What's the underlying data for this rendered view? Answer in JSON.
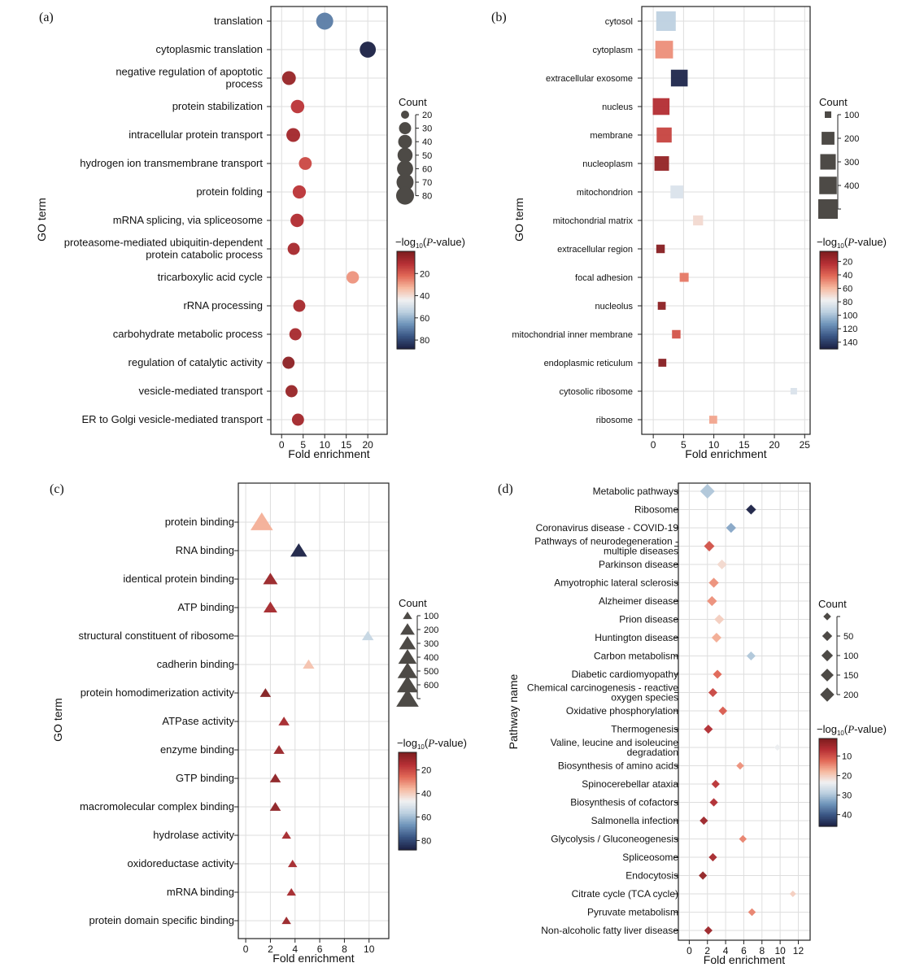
{
  "colors": {
    "scale": [
      "#7f1d1f",
      "#b73035",
      "#e26a58",
      "#f6b9a0",
      "#f1f1f2",
      "#bcd0e0",
      "#6f95bb",
      "#3b5785",
      "#1d2347"
    ],
    "legend_marker": "#4d4a46",
    "grid": "#dedede"
  },
  "chart_data": [
    {
      "panel_label": "(a)",
      "type": "scatter",
      "shape": "circle",
      "ylabel": "GO term",
      "xlabel": "Fold enrichment",
      "x_ticks": [
        0,
        5,
        10,
        15,
        20
      ],
      "xlim": [
        -2.5,
        24.5
      ],
      "grid": true,
      "color_scale": {
        "title_prefix": "−log",
        "title_sub": "10",
        "title_italic": "P",
        "title_suffix": "-value)",
        "ticks": [
          20,
          40,
          60,
          80
        ],
        "range": [
          0,
          88
        ]
      },
      "size_legend": {
        "title": "Count",
        "labels": [
          "20",
          "30",
          "40",
          "50",
          "60",
          "70",
          "80"
        ],
        "values": [
          20,
          30,
          40,
          50,
          60,
          70,
          80
        ]
      },
      "points": [
        {
          "term": [
            "translation"
          ],
          "fold": 10,
          "count": 70,
          "logp": 70
        },
        {
          "term": [
            "cytoplasmic translation"
          ],
          "fold": 20,
          "count": 60,
          "logp": 88
        },
        {
          "term": [
            "negative regulation of apoptotic",
            "process"
          ],
          "fold": 1.7,
          "count": 40,
          "logp": 5
        },
        {
          "term": [
            "protein stabilization"
          ],
          "fold": 3.7,
          "count": 38,
          "logp": 12
        },
        {
          "term": [
            "intracellular protein transport"
          ],
          "fold": 2.7,
          "count": 40,
          "logp": 7
        },
        {
          "term": [
            "hydrogen ion transmembrane transport"
          ],
          "fold": 5.5,
          "count": 34,
          "logp": 16
        },
        {
          "term": [
            "protein folding"
          ],
          "fold": 4.1,
          "count": 36,
          "logp": 12
        },
        {
          "term": [
            "mRNA splicing, via spliceosome"
          ],
          "fold": 3.6,
          "count": 37,
          "logp": 10
        },
        {
          "term": [
            "proteasome-mediated ubiquitin-dependent",
            "protein catabolic process"
          ],
          "fold": 2.8,
          "count": 30,
          "logp": 8
        },
        {
          "term": [
            "tricarboxylic acid cycle"
          ],
          "fold": 16.5,
          "count": 32,
          "logp": 28
        },
        {
          "term": [
            "rRNA processing"
          ],
          "fold": 4.1,
          "count": 30,
          "logp": 8
        },
        {
          "term": [
            "carbohydrate metabolic process"
          ],
          "fold": 3.2,
          "count": 30,
          "logp": 8
        },
        {
          "term": [
            "regulation of catalytic activity"
          ],
          "fold": 1.6,
          "count": 30,
          "logp": 3
        },
        {
          "term": [
            "vesicle-mediated transport"
          ],
          "fold": 2.3,
          "count": 30,
          "logp": 5
        },
        {
          "term": [
            "ER to Golgi vesicle-mediated transport"
          ],
          "fold": 3.8,
          "count": 30,
          "logp": 7
        }
      ]
    },
    {
      "panel_label": "(b)",
      "type": "scatter",
      "shape": "square",
      "ylabel": "GO term",
      "xlabel": "Fold enrichment",
      "x_ticks": [
        0,
        5,
        10,
        15,
        20,
        25
      ],
      "xlim": [
        -1.9,
        25.9
      ],
      "grid": true,
      "color_scale": {
        "title_prefix": "−log",
        "title_sub": "10",
        "title_italic": "P",
        "title_suffix": "-value)",
        "ticks": [
          20,
          40,
          60,
          80,
          100,
          120,
          140
        ],
        "range": [
          5,
          150
        ]
      },
      "size_legend": {
        "title": "Count",
        "labels": [
          "100",
          "200",
          "300",
          "400",
          ""
        ],
        "values": [
          60,
          160,
          260,
          360,
          480
        ]
      },
      "points": [
        {
          "term": [
            "cytosol"
          ],
          "fold": 2.1,
          "count": 480,
          "logp": 95
        },
        {
          "term": [
            "cytoplasm"
          ],
          "fold": 1.8,
          "count": 370,
          "logp": 50
        },
        {
          "term": [
            "extracellular exosome"
          ],
          "fold": 4.3,
          "count": 320,
          "logp": 148
        },
        {
          "term": [
            "nucleus"
          ],
          "fold": 1.3,
          "count": 320,
          "logp": 22
        },
        {
          "term": [
            "membrane"
          ],
          "fold": 1.8,
          "count": 240,
          "logp": 30
        },
        {
          "term": [
            "nucleoplasm"
          ],
          "fold": 1.4,
          "count": 220,
          "logp": 12
        },
        {
          "term": [
            "mitochondrion"
          ],
          "fold": 3.9,
          "count": 160,
          "logp": 85
        },
        {
          "term": [
            "mitochondrial matrix"
          ],
          "fold": 7.4,
          "count": 90,
          "logp": 70
        },
        {
          "term": [
            "extracellular region"
          ],
          "fold": 1.2,
          "count": 70,
          "logp": 8
        },
        {
          "term": [
            "focal adhesion"
          ],
          "fold": 5.1,
          "count": 75,
          "logp": 45
        },
        {
          "term": [
            "nucleolus"
          ],
          "fold": 1.4,
          "count": 65,
          "logp": 10
        },
        {
          "term": [
            "mitochondrial inner membrane"
          ],
          "fold": 3.8,
          "count": 70,
          "logp": 35
        },
        {
          "term": [
            "endoplasmic reticulum"
          ],
          "fold": 1.5,
          "count": 65,
          "logp": 8
        },
        {
          "term": [
            "cytosolic ribosome"
          ],
          "fold": 23.2,
          "count": 60,
          "logp": 85
        },
        {
          "term": [
            "ribosome"
          ],
          "fold": 9.9,
          "count": 65,
          "logp": 55
        }
      ]
    },
    {
      "panel_label": "(c)",
      "type": "scatter",
      "shape": "triangle",
      "ylabel": "GO term",
      "xlabel": "Fold enrichment",
      "x_ticks": [
        0,
        2,
        4,
        6,
        8,
        10
      ],
      "xlim": [
        -0.6,
        11.6
      ],
      "grid": true,
      "color_scale": {
        "title_prefix": "−log",
        "title_sub": "10",
        "title_italic": "P",
        "title_suffix": "-value)",
        "ticks": [
          20,
          40,
          60,
          80
        ],
        "range": [
          5,
          88
        ]
      },
      "size_legend": {
        "title": "Count",
        "labels": [
          "100",
          "200",
          "300",
          "400",
          "500",
          "600",
          ""
        ],
        "values": [
          100,
          200,
          300,
          400,
          500,
          600,
          720
        ]
      },
      "points": [
        {
          "term": [
            "protein binding"
          ],
          "fold": 1.3,
          "count": 720,
          "logp": 35
        },
        {
          "term": [
            "RNA binding"
          ],
          "fold": 4.3,
          "count": 300,
          "logp": 88
        },
        {
          "term": [
            "identical protein binding"
          ],
          "fold": 2.0,
          "count": 200,
          "logp": 10
        },
        {
          "term": [
            "ATP binding"
          ],
          "fold": 2.0,
          "count": 170,
          "logp": 12
        },
        {
          "term": [
            "structural constituent of ribosome"
          ],
          "fold": 9.9,
          "count": 120,
          "logp": 55
        },
        {
          "term": [
            "cadherin binding"
          ],
          "fold": 5.1,
          "count": 120,
          "logp": 38
        },
        {
          "term": [
            "protein homodimerization activity"
          ],
          "fold": 1.6,
          "count": 110,
          "logp": 6
        },
        {
          "term": [
            "ATPase activity"
          ],
          "fold": 3.1,
          "count": 110,
          "logp": 12
        },
        {
          "term": [
            "enzyme binding"
          ],
          "fold": 2.7,
          "count": 110,
          "logp": 10
        },
        {
          "term": [
            "GTP binding"
          ],
          "fold": 2.4,
          "count": 110,
          "logp": 8
        },
        {
          "term": [
            "macromolecular complex binding"
          ],
          "fold": 2.4,
          "count": 110,
          "logp": 8
        },
        {
          "term": [
            "hydrolase activity"
          ],
          "fold": 3.3,
          "count": 100,
          "logp": 12
        },
        {
          "term": [
            "oxidoreductase activity"
          ],
          "fold": 3.8,
          "count": 100,
          "logp": 12
        },
        {
          "term": [
            "mRNA binding"
          ],
          "fold": 3.7,
          "count": 100,
          "logp": 12
        },
        {
          "term": [
            "protein domain specific binding"
          ],
          "fold": 3.3,
          "count": 100,
          "logp": 10
        }
      ]
    },
    {
      "panel_label": "(d)",
      "type": "scatter",
      "shape": "diamond",
      "ylabel": "Pathway name",
      "xlabel": "Fold enrichment",
      "x_ticks": [
        0,
        2,
        4,
        6,
        8,
        10,
        12
      ],
      "xlim": [
        -1.2,
        13.3
      ],
      "grid": true,
      "color_scale": {
        "title_prefix": "−log",
        "title_sub": "10",
        "title_italic": "P",
        "title_suffix": "-value)",
        "ticks": [
          10,
          20,
          30,
          40
        ],
        "range": [
          1,
          46
        ]
      },
      "size_legend": {
        "title": "Count",
        "labels": [
          "",
          "50",
          "100",
          "150",
          "200"
        ],
        "values": [
          25,
          60,
          100,
          150,
          205
        ]
      },
      "points": [
        {
          "term": [
            "Metabolic pathways"
          ],
          "fold": 2.0,
          "count": 230,
          "logp": 30
        },
        {
          "term": [
            "Ribosome"
          ],
          "fold": 6.8,
          "count": 60,
          "logp": 46
        },
        {
          "term": [
            "Coronavirus disease - COVID-19"
          ],
          "fold": 4.6,
          "count": 60,
          "logp": 33
        },
        {
          "term": [
            "Pathways of neurodegeneration -",
            "multiple diseases"
          ],
          "fold": 2.2,
          "count": 70,
          "logp": 10
        },
        {
          "term": [
            "Parkinson disease"
          ],
          "fold": 3.6,
          "count": 55,
          "logp": 21
        },
        {
          "term": [
            "Amyotrophic lateral sclerosis"
          ],
          "fold": 2.7,
          "count": 60,
          "logp": 15
        },
        {
          "term": [
            "Alzheimer disease"
          ],
          "fold": 2.5,
          "count": 60,
          "logp": 15
        },
        {
          "term": [
            "Prion disease"
          ],
          "fold": 3.3,
          "count": 55,
          "logp": 20
        },
        {
          "term": [
            "Huntington disease"
          ],
          "fold": 3.0,
          "count": 55,
          "logp": 17
        },
        {
          "term": [
            "Carbon metabolism"
          ],
          "fold": 6.8,
          "count": 40,
          "logp": 30
        },
        {
          "term": [
            "Diabetic cardiomyopathy"
          ],
          "fold": 3.1,
          "count": 40,
          "logp": 12
        },
        {
          "term": [
            "Chemical carcinogenesis - reactive",
            "oxygen species"
          ],
          "fold": 2.6,
          "count": 40,
          "logp": 9
        },
        {
          "term": [
            "Oxidative phosphorylation"
          ],
          "fold": 3.7,
          "count": 35,
          "logp": 11
        },
        {
          "term": [
            "Thermogenesis"
          ],
          "fold": 2.1,
          "count": 40,
          "logp": 6
        },
        {
          "term": [
            "Valine, leucine and isoleucine",
            "degradation"
          ],
          "fold": 9.7,
          "count": 20,
          "logp": 24
        },
        {
          "term": [
            "Biosynthesis of amino acids"
          ],
          "fold": 5.6,
          "count": 25,
          "logp": 15
        },
        {
          "term": [
            "Spinocerebellar ataxia"
          ],
          "fold": 2.9,
          "count": 30,
          "logp": 7
        },
        {
          "term": [
            "Biosynthesis of cofactors"
          ],
          "fold": 2.7,
          "count": 30,
          "logp": 6
        },
        {
          "term": [
            "Salmonella infection"
          ],
          "fold": 1.6,
          "count": 30,
          "logp": 4
        },
        {
          "term": [
            "Glycolysis / Gluconeogenesis"
          ],
          "fold": 5.9,
          "count": 25,
          "logp": 14
        },
        {
          "term": [
            "Spliceosome"
          ],
          "fold": 2.6,
          "count": 30,
          "logp": 5
        },
        {
          "term": [
            "Endocytosis"
          ],
          "fold": 1.5,
          "count": 30,
          "logp": 3
        },
        {
          "term": [
            "Citrate cycle (TCA cycle)"
          ],
          "fold": 11.4,
          "count": 20,
          "logp": 20
        },
        {
          "term": [
            "Pyruvate metabolism"
          ],
          "fold": 6.9,
          "count": 25,
          "logp": 14
        },
        {
          "term": [
            "Non-alcoholic fatty liver disease"
          ],
          "fold": 2.1,
          "count": 30,
          "logp": 4
        }
      ]
    }
  ]
}
